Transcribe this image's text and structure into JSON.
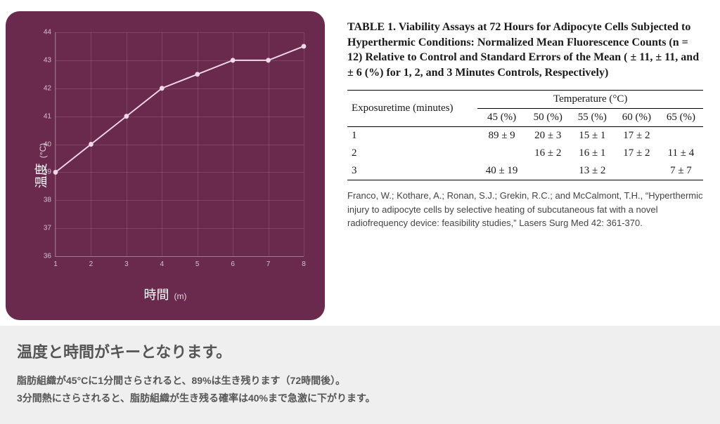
{
  "chart": {
    "type": "line",
    "bg_color": "#6a2a4e",
    "line_color": "#f0d7e5",
    "grid_color": "rgba(255,255,255,.12)",
    "y_label": "温度",
    "y_unit": "(°C)",
    "x_label": "時間",
    "x_unit": "(m)",
    "ylim": [
      36,
      44
    ],
    "xlim": [
      1,
      8
    ],
    "y_ticks": [
      36,
      37,
      38,
      39,
      40,
      41,
      42,
      43,
      44
    ],
    "x_ticks": [
      1,
      2,
      3,
      4,
      5,
      6,
      7,
      8
    ],
    "x": [
      1,
      2,
      3,
      4,
      5,
      6,
      7,
      8
    ],
    "y": [
      39,
      40,
      41,
      42,
      42.5,
      43,
      43,
      43.5
    ],
    "marker_radius": 3.5,
    "line_width": 2
  },
  "table": {
    "title": "TABLE 1.  Viability Assays at 72 Hours for Adipocyte Cells Subjected to Hyperthermic Conditions: Normalized Mean Fluorescence Counts (n = 12) Relative to Control and Standard Errors of the Mean ( ± 11,  ± 11, and  ± 6 (%) for 1, 2, and 3 Minutes Controls, Respectively)",
    "row_header_label": "Exposuretime (minutes)",
    "span_header": "Temperature (°C)",
    "columns": [
      "45 (%)",
      "50 (%)",
      "55 (%)",
      "60 (%)",
      "65 (%)"
    ],
    "rows": [
      {
        "label": "1",
        "cells": [
          "89 ± 9",
          "20 ± 3",
          "15 ± 1",
          "17 ± 2",
          ""
        ]
      },
      {
        "label": "2",
        "cells": [
          "",
          "16 ± 2",
          "16 ± 1",
          "17 ± 2",
          "11 ± 4"
        ]
      },
      {
        "label": "3",
        "cells": [
          "40 ± 19",
          "",
          "13 ± 2",
          "",
          "7 ± 7"
        ]
      }
    ],
    "citation": "Franco, W.; Kothare, A.; Ronan, S.J.; Grekin, R.C.; and McCalmont, T.H., “Hyperthermic injury to adipocyte cells by selective heating of subcutaneous fat with a novel radiofrequency device: feasibility studies,” Lasers Surg Med 42: 361-370."
  },
  "bottom": {
    "heading": "温度と時間がキーとなります。",
    "line1": "脂肪組織が45°Cに1分間さらされると、89%は生き残ります（72時間後）。",
    "line2": "3分間熱にさらされると、脂肪組織が生き残る確率は40%まで急激に下がります。"
  }
}
